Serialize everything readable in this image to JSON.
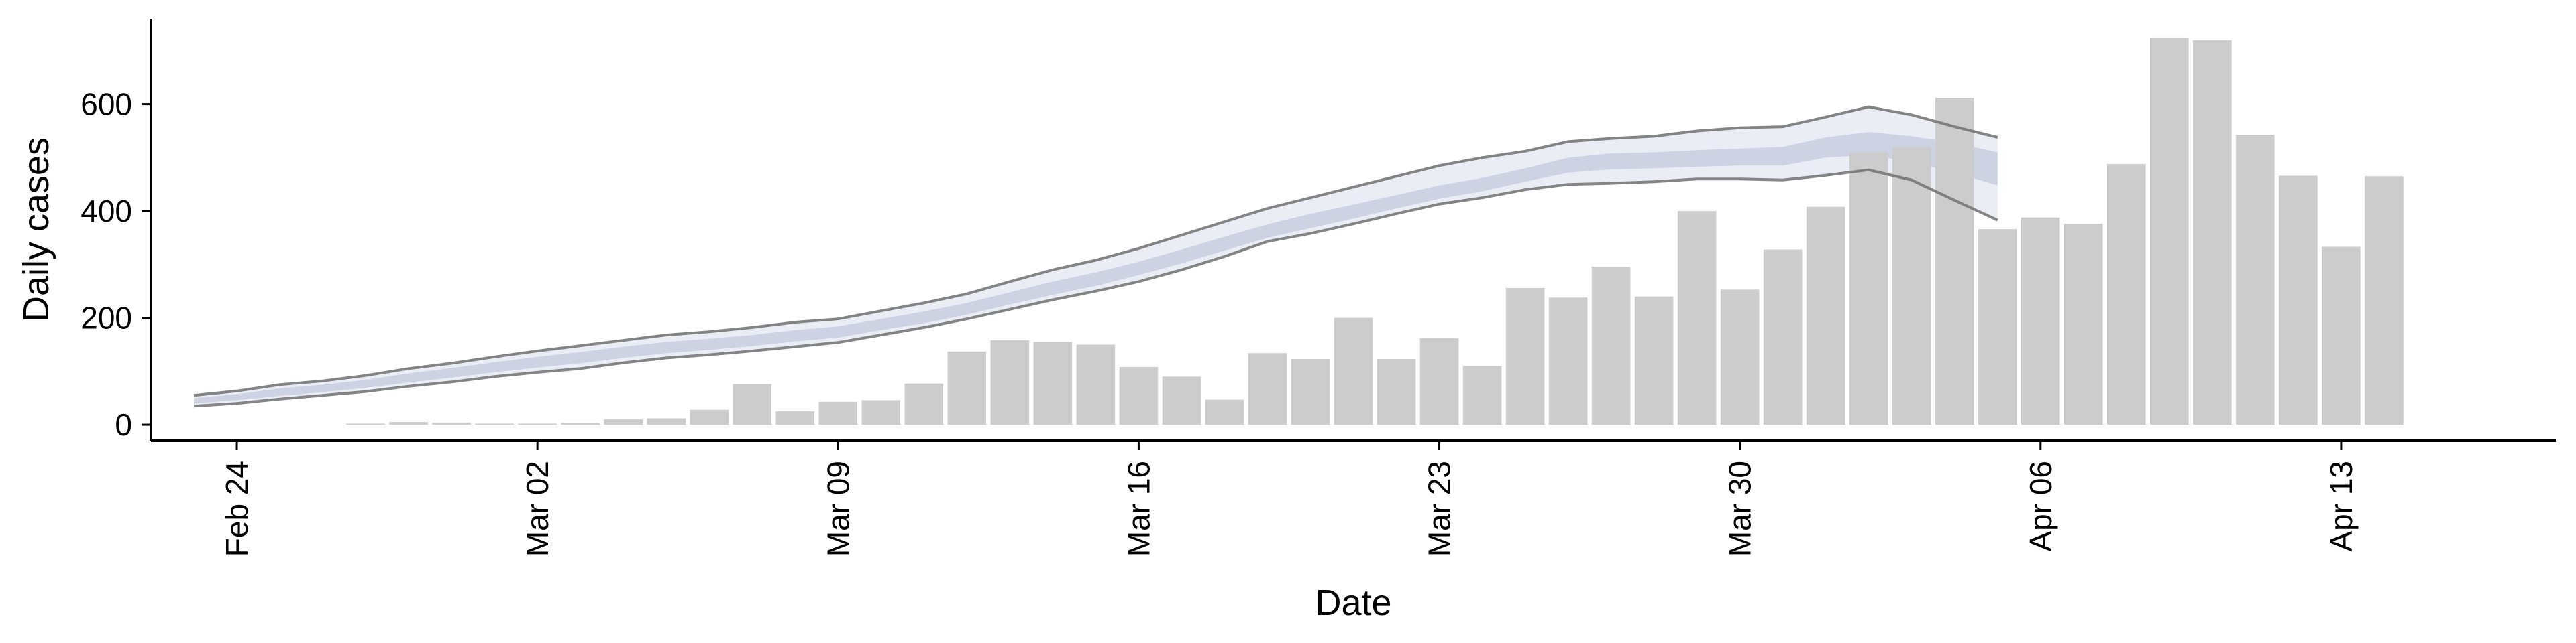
{
  "chart_data": {
    "type": "bar",
    "xlabel": "Date",
    "ylabel": "Daily cases",
    "ylim": [
      -30,
      760
    ],
    "yticks": [
      0,
      200,
      400,
      600
    ],
    "x_start": "2020-02-22",
    "x_end": "2020-04-18",
    "xtick_labels": [
      {
        "date": "2020-02-24",
        "label": "Feb 24"
      },
      {
        "date": "2020-03-02",
        "label": "Mar 02"
      },
      {
        "date": "2020-03-09",
        "label": "Mar 09"
      },
      {
        "date": "2020-03-16",
        "label": "Mar 16"
      },
      {
        "date": "2020-03-23",
        "label": "Mar 23"
      },
      {
        "date": "2020-03-30",
        "label": "Mar 30"
      },
      {
        "date": "2020-04-06",
        "label": "Apr 06"
      },
      {
        "date": "2020-04-13",
        "label": "Apr 13"
      }
    ],
    "bars": {
      "first_date": "2020-02-27",
      "color": "#cccccc",
      "values": [
        2,
        5,
        4,
        2,
        2,
        3,
        10,
        12,
        28,
        76,
        25,
        43,
        46,
        77,
        137,
        158,
        155,
        150,
        108,
        90,
        47,
        134,
        123,
        200,
        123,
        162,
        110,
        256,
        238,
        296,
        240,
        400,
        253,
        328,
        408,
        510,
        520,
        612,
        366,
        388,
        376,
        488,
        725,
        720,
        543,
        466,
        333,
        465
      ]
    },
    "estimate": {
      "first_date": "2020-02-23",
      "band_color": "#c7cce0",
      "outer_band_color": "#e4e7f1",
      "line_color": "#777777",
      "upper": [
        55,
        63,
        75,
        82,
        92,
        105,
        115,
        127,
        138,
        148,
        158,
        168,
        174,
        182,
        192,
        198,
        213,
        228,
        245,
        268,
        290,
        308,
        330,
        355,
        380,
        405,
        425,
        445,
        465,
        485,
        500,
        512,
        530,
        536,
        540,
        550,
        556,
        558,
        576,
        595,
        580,
        558,
        538
      ],
      "lower": [
        35,
        40,
        48,
        55,
        62,
        72,
        80,
        90,
        98,
        105,
        116,
        125,
        131,
        138,
        146,
        154,
        168,
        182,
        198,
        216,
        234,
        250,
        268,
        290,
        315,
        343,
        358,
        376,
        395,
        413,
        425,
        440,
        450,
        452,
        455,
        460,
        460,
        458,
        467,
        477,
        458,
        420,
        383
      ],
      "inner_upper": [
        50,
        57,
        68,
        75,
        84,
        96,
        106,
        117,
        127,
        136,
        146,
        155,
        161,
        168,
        177,
        184,
        198,
        212,
        228,
        248,
        268,
        285,
        305,
        328,
        352,
        375,
        395,
        412,
        430,
        448,
        462,
        480,
        500,
        508,
        510,
        514,
        517,
        520,
        538,
        548,
        540,
        528,
        510
      ],
      "inner_lower": [
        40,
        46,
        54,
        61,
        69,
        79,
        88,
        98,
        107,
        115,
        125,
        134,
        140,
        147,
        156,
        163,
        177,
        190,
        206,
        225,
        243,
        260,
        280,
        302,
        326,
        350,
        368,
        386,
        405,
        423,
        437,
        455,
        472,
        478,
        480,
        483,
        485,
        485,
        500,
        505,
        492,
        472,
        448
      ]
    }
  }
}
